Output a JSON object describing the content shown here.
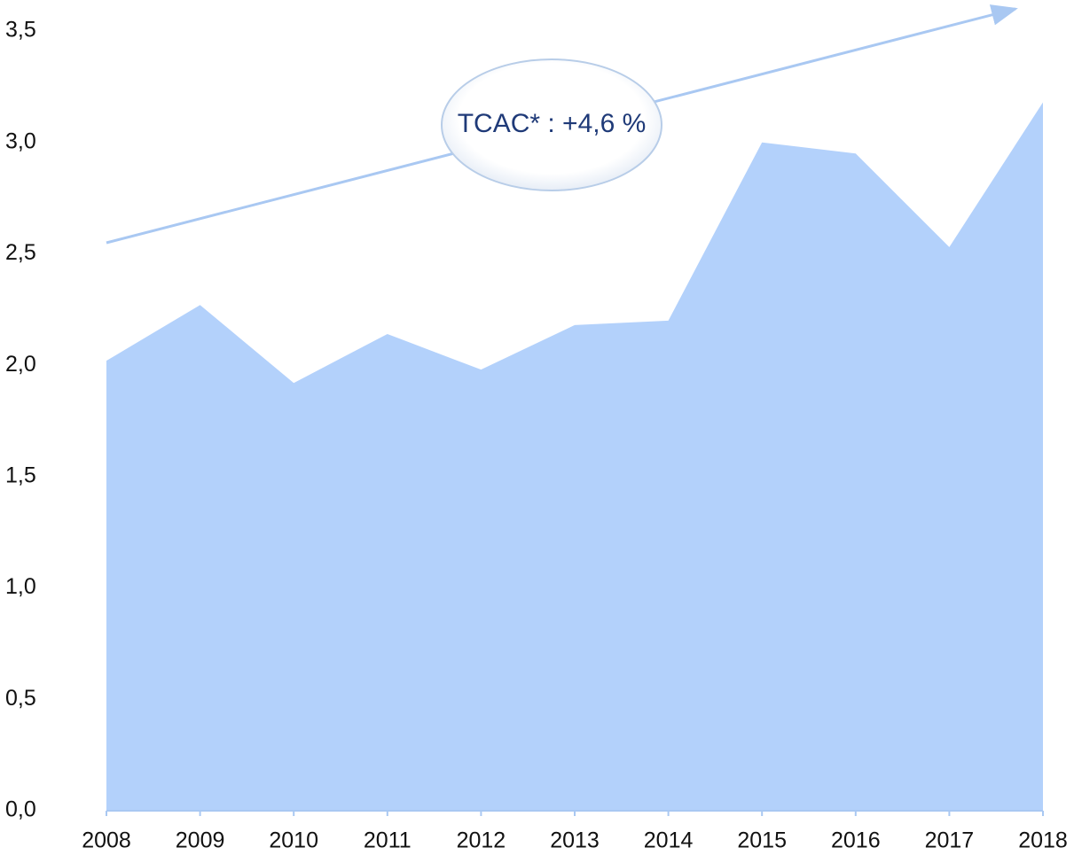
{
  "chart_data": {
    "type": "area",
    "categories": [
      "2008",
      "2009",
      "2010",
      "2011",
      "2012",
      "2013",
      "2014",
      "2015",
      "2016",
      "2017",
      "2018"
    ],
    "values": [
      2.02,
      2.27,
      1.92,
      2.14,
      1.98,
      2.18,
      2.2,
      3.0,
      2.95,
      2.53,
      3.18
    ],
    "color": "#b3d1fb",
    "ylim": [
      0,
      3.5
    ],
    "yticks": [
      {
        "value": 0,
        "label": "0,0"
      },
      {
        "value": 0.5,
        "label": "0,5"
      },
      {
        "value": 1,
        "label": "1,0"
      },
      {
        "value": 1.5,
        "label": "1,5"
      },
      {
        "value": 2,
        "label": "2,0"
      },
      {
        "value": 2.5,
        "label": "2,5"
      },
      {
        "value": 3,
        "label": "3,0"
      },
      {
        "value": 3.5,
        "label": "3,5"
      }
    ],
    "grid": false,
    "annotation": "TCAC* : +4,6 %"
  }
}
